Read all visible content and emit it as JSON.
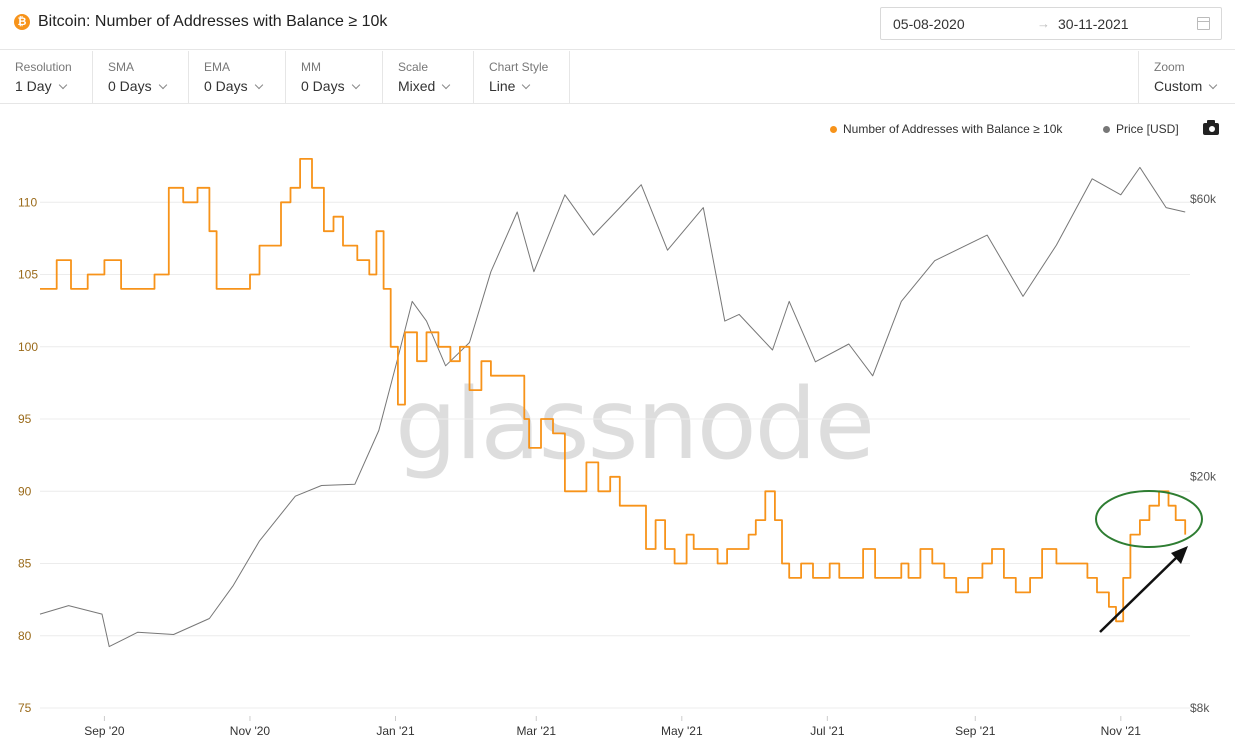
{
  "header": {
    "title": "Bitcoin: Number of Addresses with Balance ≥ 10k",
    "coin_icon": "bitcoin-icon",
    "date_from": "05-08-2020",
    "date_arrow": "→",
    "date_to": "30-11-2021",
    "calendar_icon": "calendar-icon"
  },
  "controls": [
    {
      "label": "Resolution",
      "value": "1 Day"
    },
    {
      "label": "SMA",
      "value": "0 Days"
    },
    {
      "label": "EMA",
      "value": "0 Days"
    },
    {
      "label": "MM",
      "value": "0 Days"
    },
    {
      "label": "Scale",
      "value": "Mixed"
    },
    {
      "label": "Chart Style",
      "value": "Line"
    }
  ],
  "zoom": {
    "label": "Zoom",
    "value": "Custom"
  },
  "watermark": "glassnode",
  "colors": {
    "addresses": "#f7931a",
    "price": "#777777",
    "annotation_circle": "#2e7d32",
    "annotation_arrow": "#111111"
  },
  "chart_data": {
    "type": "line",
    "x_ticks": [
      "Sep '20",
      "Nov '20",
      "Jan '21",
      "Mar '21",
      "May '21",
      "Jul '21",
      "Sep '21",
      "Nov '21"
    ],
    "y_left_ticks": [
      "110",
      "105",
      "100",
      "95",
      "90",
      "85",
      "80",
      "75"
    ],
    "y_left_range": [
      75,
      115
    ],
    "y_right_ticks": [
      "$60k",
      "$20k",
      "$8k"
    ],
    "y_right_scale": "log",
    "grid": true,
    "legend_position": "top-right",
    "series": [
      {
        "name": "Number of Addresses with Balance ≥ 10k",
        "axis": "left",
        "color": "#f7931a",
        "points": [
          [
            "2020-08-05",
            104
          ],
          [
            "2020-08-12",
            106
          ],
          [
            "2020-08-18",
            104
          ],
          [
            "2020-08-25",
            105
          ],
          [
            "2020-09-01",
            106
          ],
          [
            "2020-09-08",
            104
          ],
          [
            "2020-09-15",
            104
          ],
          [
            "2020-09-22",
            105
          ],
          [
            "2020-09-28",
            111
          ],
          [
            "2020-10-04",
            110
          ],
          [
            "2020-10-10",
            111
          ],
          [
            "2020-10-15",
            108
          ],
          [
            "2020-10-18",
            104
          ],
          [
            "2020-10-25",
            104
          ],
          [
            "2020-11-01",
            105
          ],
          [
            "2020-11-05",
            107
          ],
          [
            "2020-11-10",
            107
          ],
          [
            "2020-11-14",
            110
          ],
          [
            "2020-11-18",
            111
          ],
          [
            "2020-11-22",
            113
          ],
          [
            "2020-11-27",
            111
          ],
          [
            "2020-12-02",
            108
          ],
          [
            "2020-12-06",
            109
          ],
          [
            "2020-12-10",
            107
          ],
          [
            "2020-12-16",
            106
          ],
          [
            "2020-12-21",
            105
          ],
          [
            "2020-12-24",
            108
          ],
          [
            "2020-12-27",
            104
          ],
          [
            "2020-12-30",
            100
          ],
          [
            "2021-01-02",
            96
          ],
          [
            "2021-01-05",
            101
          ],
          [
            "2021-01-10",
            99
          ],
          [
            "2021-01-14",
            101
          ],
          [
            "2021-01-19",
            100
          ],
          [
            "2021-01-24",
            99
          ],
          [
            "2021-01-28",
            100
          ],
          [
            "2021-02-01",
            97
          ],
          [
            "2021-02-06",
            99
          ],
          [
            "2021-02-10",
            98
          ],
          [
            "2021-02-18",
            98
          ],
          [
            "2021-02-24",
            95
          ],
          [
            "2021-02-26",
            93
          ],
          [
            "2021-03-03",
            95
          ],
          [
            "2021-03-08",
            94
          ],
          [
            "2021-03-13",
            90
          ],
          [
            "2021-03-18",
            90
          ],
          [
            "2021-03-22",
            92
          ],
          [
            "2021-03-27",
            90
          ],
          [
            "2021-04-01",
            91
          ],
          [
            "2021-04-05",
            89
          ],
          [
            "2021-04-12",
            89
          ],
          [
            "2021-04-16",
            86
          ],
          [
            "2021-04-20",
            88
          ],
          [
            "2021-04-24",
            86
          ],
          [
            "2021-04-28",
            85
          ],
          [
            "2021-05-03",
            87
          ],
          [
            "2021-05-06",
            86
          ],
          [
            "2021-05-12",
            86
          ],
          [
            "2021-05-16",
            85
          ],
          [
            "2021-05-20",
            86
          ],
          [
            "2021-05-25",
            86
          ],
          [
            "2021-05-29",
            87
          ],
          [
            "2021-06-01",
            88
          ],
          [
            "2021-06-05",
            90
          ],
          [
            "2021-06-09",
            88
          ],
          [
            "2021-06-12",
            85
          ],
          [
            "2021-06-15",
            84
          ],
          [
            "2021-06-20",
            85
          ],
          [
            "2021-06-25",
            84
          ],
          [
            "2021-07-02",
            85
          ],
          [
            "2021-07-06",
            84
          ],
          [
            "2021-07-12",
            84
          ],
          [
            "2021-07-16",
            86
          ],
          [
            "2021-07-21",
            84
          ],
          [
            "2021-07-27",
            84
          ],
          [
            "2021-08-01",
            85
          ],
          [
            "2021-08-04",
            84
          ],
          [
            "2021-08-09",
            86
          ],
          [
            "2021-08-14",
            85
          ],
          [
            "2021-08-19",
            84
          ],
          [
            "2021-08-24",
            83
          ],
          [
            "2021-08-29",
            84
          ],
          [
            "2021-09-04",
            85
          ],
          [
            "2021-09-08",
            86
          ],
          [
            "2021-09-13",
            84
          ],
          [
            "2021-09-18",
            83
          ],
          [
            "2021-09-24",
            84
          ],
          [
            "2021-09-29",
            86
          ],
          [
            "2021-10-05",
            85
          ],
          [
            "2021-10-12",
            85
          ],
          [
            "2021-10-18",
            84
          ],
          [
            "2021-10-22",
            83
          ],
          [
            "2021-10-27",
            82
          ],
          [
            "2021-10-30",
            81
          ],
          [
            "2021-11-02",
            84
          ],
          [
            "2021-11-05",
            87
          ],
          [
            "2021-11-09",
            88
          ],
          [
            "2021-11-13",
            89
          ],
          [
            "2021-11-17",
            90
          ],
          [
            "2021-11-21",
            89
          ],
          [
            "2021-11-24",
            88
          ],
          [
            "2021-11-28",
            87
          ]
        ]
      },
      {
        "name": "Price [USD]",
        "axis": "right",
        "color": "#777777",
        "points": [
          [
            "2020-08-05",
            11600
          ],
          [
            "2020-08-17",
            12000
          ],
          [
            "2020-08-31",
            11600
          ],
          [
            "2020-09-03",
            10200
          ],
          [
            "2020-09-15",
            10800
          ],
          [
            "2020-09-30",
            10700
          ],
          [
            "2020-10-15",
            11400
          ],
          [
            "2020-10-25",
            13000
          ],
          [
            "2020-11-05",
            15500
          ],
          [
            "2020-11-20",
            18500
          ],
          [
            "2020-12-01",
            19300
          ],
          [
            "2020-12-15",
            19400
          ],
          [
            "2020-12-25",
            24000
          ],
          [
            "2021-01-02",
            32000
          ],
          [
            "2021-01-08",
            40000
          ],
          [
            "2021-01-14",
            37000
          ],
          [
            "2021-01-22",
            31000
          ],
          [
            "2021-02-01",
            34000
          ],
          [
            "2021-02-10",
            45000
          ],
          [
            "2021-02-21",
            57000
          ],
          [
            "2021-02-28",
            45000
          ],
          [
            "2021-03-13",
            61000
          ],
          [
            "2021-03-25",
            52000
          ],
          [
            "2021-04-05",
            58000
          ],
          [
            "2021-04-14",
            63500
          ],
          [
            "2021-04-25",
            49000
          ],
          [
            "2021-05-10",
            58000
          ],
          [
            "2021-05-19",
            37000
          ],
          [
            "2021-05-25",
            38000
          ],
          [
            "2021-06-08",
            33000
          ],
          [
            "2021-06-15",
            40000
          ],
          [
            "2021-06-26",
            31500
          ],
          [
            "2021-07-10",
            33800
          ],
          [
            "2021-07-20",
            29800
          ],
          [
            "2021-08-01",
            40000
          ],
          [
            "2021-08-15",
            47000
          ],
          [
            "2021-09-06",
            52000
          ],
          [
            "2021-09-21",
            40800
          ],
          [
            "2021-10-05",
            50000
          ],
          [
            "2021-10-20",
            65000
          ],
          [
            "2021-11-01",
            61000
          ],
          [
            "2021-11-09",
            68000
          ],
          [
            "2021-11-20",
            58000
          ],
          [
            "2021-11-28",
            57000
          ]
        ]
      }
    ],
    "annotations": [
      {
        "type": "ellipse",
        "around": "Nov '21 peak",
        "color": "green"
      },
      {
        "type": "arrow",
        "pointing_to": "ellipse",
        "color": "black"
      }
    ]
  }
}
